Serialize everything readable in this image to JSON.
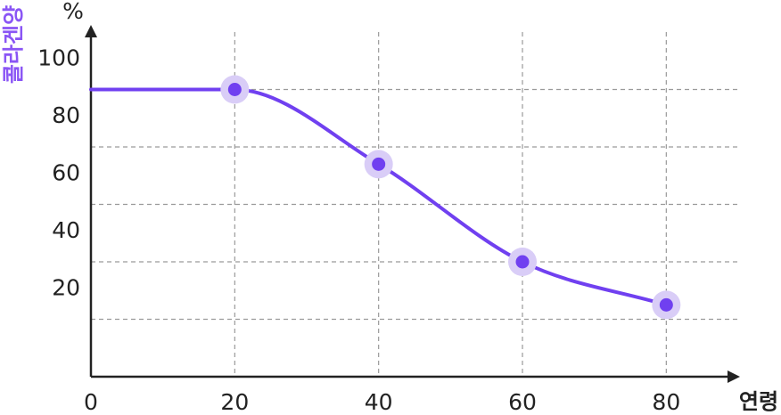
{
  "chart_data": {
    "type": "line",
    "y_axis_title": "콜라겐양",
    "y_unit": "%",
    "x_axis_title": "연령",
    "x": [
      0,
      20,
      40,
      60,
      80
    ],
    "values": [
      100,
      100,
      74,
      40,
      25
    ],
    "color": "#7040f0",
    "halo_color": "#d9cdf7",
    "title_color": "#8a55f5",
    "xlim": [
      0,
      90
    ],
    "ylim": [
      0,
      120
    ],
    "xticks": [
      0,
      20,
      40,
      60,
      80
    ],
    "yticks": [
      20,
      40,
      60,
      80,
      100
    ],
    "grid": true
  }
}
